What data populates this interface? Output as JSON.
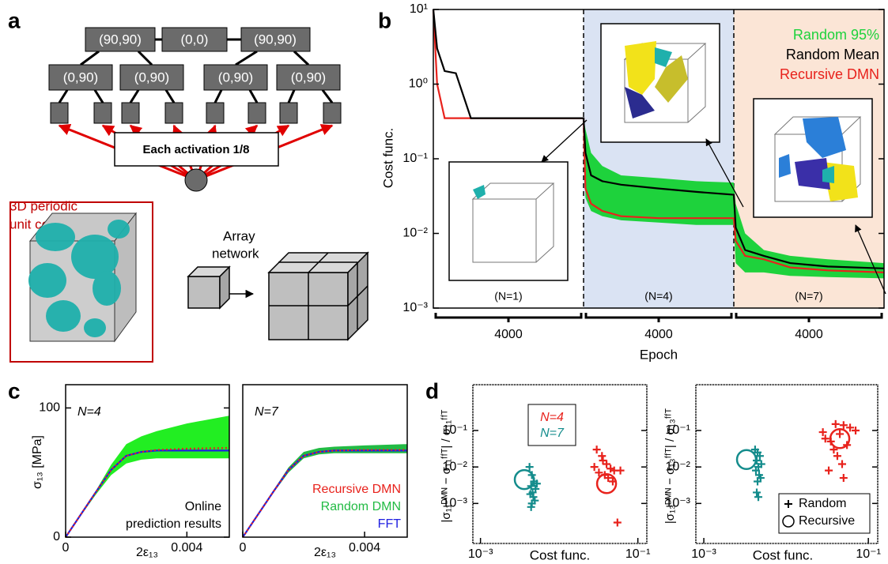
{
  "labels": [
    "a",
    "b",
    "c",
    "d"
  ],
  "diagram": {
    "level1": [
      "(90,90)",
      "(0,0)",
      "(90,90)"
    ],
    "level2": [
      "(0,90)",
      "(0,90)",
      "(0,90)",
      "(0,90)"
    ],
    "activation": "Each activation 1/8",
    "unit_cell": [
      "3D periodic",
      "unit cell"
    ],
    "array": [
      "Array",
      "network"
    ]
  },
  "chart_data": [
    {
      "type": "line",
      "ylabel": "Cost func.",
      "xlabel": "Epoch",
      "log_y": true,
      "xlim": [
        0,
        12000
      ],
      "ylim": [
        0.001,
        10
      ],
      "yticks": [
        {
          "value": 0.001,
          "label": "10⁻³"
        },
        {
          "value": 0.01,
          "label": "10⁻²"
        },
        {
          "value": 0.1,
          "label": "10⁻¹"
        },
        {
          "value": 1,
          "label": "10⁰"
        },
        {
          "value": 10,
          "label": "10¹"
        }
      ],
      "stages": [
        {
          "epochs": 4000,
          "label": "(N=1)",
          "color": "#ffffff"
        },
        {
          "epochs": 4000,
          "label": "(N=4)",
          "color": "#dae3f3"
        },
        {
          "epochs": 4000,
          "label": "(N=7)",
          "color": "#fbe5d6"
        }
      ],
      "x": [
        0,
        100,
        300,
        600,
        800,
        1000,
        2000,
        4000,
        4050,
        4200,
        4500,
        5000,
        6000,
        7000,
        8000,
        8050,
        8300,
        8800,
        9500,
        10500,
        12000
      ],
      "series": [
        {
          "name": "Random 95%",
          "color": "#1ed23c",
          "upper": [
            null,
            null,
            null,
            null,
            null,
            null,
            null,
            0.35,
            0.25,
            0.12,
            0.08,
            0.06,
            0.055,
            0.05,
            0.048,
            0.025,
            0.01,
            0.006,
            0.005,
            0.0045,
            0.004
          ],
          "lower": [
            null,
            null,
            null,
            null,
            null,
            null,
            null,
            0.35,
            0.03,
            0.02,
            0.017,
            0.015,
            0.014,
            0.013,
            0.013,
            0.004,
            0.003,
            0.003,
            0.0027,
            0.0026,
            0.0025
          ]
        },
        {
          "name": "Random Mean",
          "color": "#000000",
          "values": [
            10,
            3,
            1.5,
            1.4,
            0.7,
            0.35,
            0.35,
            0.35,
            0.12,
            0.06,
            0.05,
            0.045,
            0.04,
            0.036,
            0.033,
            0.012,
            0.006,
            0.005,
            0.004,
            0.0036,
            0.0034
          ]
        },
        {
          "name": "Recursive DMN",
          "color": "#e8221c",
          "values": [
            10,
            1,
            0.35,
            0.35,
            0.35,
            0.35,
            0.35,
            0.35,
            0.04,
            0.025,
            0.02,
            0.017,
            0.016,
            0.016,
            0.016,
            0.008,
            0.005,
            0.0045,
            0.0035,
            0.0032,
            0.003
          ]
        }
      ]
    },
    {
      "type": "line",
      "ylabel": "σ₁₃ [MPa]",
      "xlabel": "2ε₁₃",
      "annotations": [
        "N=4",
        "Online",
        "prediction results"
      ],
      "xlim": [
        0,
        0.0054
      ],
      "ylim": [
        0,
        118
      ],
      "xticks": [
        0,
        0.004
      ],
      "yticks": [
        0,
        100
      ],
      "x": [
        0,
        0.001,
        0.0015,
        0.002,
        0.0025,
        0.003,
        0.004,
        0.0054
      ],
      "series": [
        {
          "color": "#e8221c",
          "style": "dotted",
          "values": [
            0,
            35,
            52,
            63,
            66,
            67.5,
            68.5,
            69
          ]
        },
        {
          "color": "#22ee22",
          "upper": [
            0,
            36,
            56,
            72,
            78,
            82,
            88,
            94
          ],
          "lower": [
            0,
            33,
            48,
            57,
            60,
            61,
            61,
            61
          ]
        },
        {
          "color": "#2020e0",
          "values": [
            0,
            35,
            52,
            63,
            66,
            67,
            67,
            67
          ]
        }
      ]
    },
    {
      "type": "line",
      "xlabel": "2ε₁₃",
      "annotations": [
        "N=7"
      ],
      "xlim": [
        0,
        0.0054
      ],
      "ylim": [
        0,
        118
      ],
      "xticks": [
        0,
        0.004
      ],
      "x": [
        0,
        0.001,
        0.0015,
        0.002,
        0.0025,
        0.003,
        0.004,
        0.0054
      ],
      "series": [
        {
          "name": "Recursive DMN",
          "color": "#e8221c",
          "style": "dotted",
          "values": [
            0,
            35,
            52,
            63,
            66,
            67,
            67.5,
            67.5
          ]
        },
        {
          "name": "Random DMN",
          "color": "#22bb44",
          "upper": [
            0,
            36,
            54,
            66,
            69,
            70,
            71,
            72
          ],
          "lower": [
            0,
            34,
            50,
            61,
            64,
            65,
            65,
            65
          ]
        },
        {
          "name": "FFT",
          "color": "#2020e0",
          "values": [
            0,
            35,
            52,
            63,
            66,
            67,
            67,
            67
          ]
        }
      ]
    },
    {
      "type": "scatter",
      "xlabel": "Cost func.",
      "ylabel": "|σ₁₁ᴰᴹᴺ − σ₁₁ᶠᶠᵀ| / σ₁₁ᶠᶠᵀ",
      "log_x": true,
      "log_y": true,
      "xlim": [
        0.0008,
        0.13
      ],
      "ylim": [
        8e-05,
        1.8
      ],
      "xticks": [
        {
          "value": 0.001,
          "label": "10⁻³"
        },
        {
          "value": 0.1,
          "label": "10⁻¹"
        }
      ],
      "yticks": [
        {
          "value": 0.001,
          "label": "10⁻³"
        },
        {
          "value": 0.01,
          "label": "10⁻²"
        },
        {
          "value": 0.1,
          "label": "10⁻¹"
        }
      ],
      "series": [
        {
          "name": "N=4",
          "color": "#e8221c",
          "x": [
            0.03,
            0.035,
            0.04,
            0.045,
            0.05,
            0.032,
            0.038,
            0.042,
            0.028,
            0.048,
            0.055,
            0.036,
            0.06
          ],
          "y": [
            0.03,
            0.02,
            0.012,
            0.009,
            0.008,
            0.007,
            0.006,
            0.005,
            0.01,
            0.004,
            0.0003,
            0.015,
            0.008
          ],
          "recursive": {
            "x": 0.04,
            "y": 0.0035
          }
        },
        {
          "name": "N=7",
          "color": "#148c8c",
          "x": [
            0.0042,
            0.0045,
            0.0048,
            0.0044,
            0.005,
            0.0046,
            0.0043,
            0.0047,
            0.0049,
            0.0045,
            0.0052,
            0.0044
          ],
          "y": [
            0.01,
            0.006,
            0.004,
            0.003,
            0.0025,
            0.002,
            0.0018,
            0.0015,
            0.0012,
            0.001,
            0.0035,
            0.0008
          ],
          "recursive": {
            "x": 0.0036,
            "y": 0.0045
          }
        }
      ]
    },
    {
      "type": "scatter",
      "xlabel": "Cost func.",
      "ylabel": "|σ₁₃ᴰᴹᴺ − σ₁₃ᶠᶠᵀ| / σ₁₃ᶠᶠᵀ",
      "log_x": true,
      "log_y": true,
      "xlim": [
        0.0008,
        0.13
      ],
      "ylim": [
        8e-05,
        1.8
      ],
      "xticks": [
        {
          "value": 0.001,
          "label": "10⁻³"
        },
        {
          "value": 0.1,
          "label": "10⁻¹"
        }
      ],
      "yticks": [
        {
          "value": 0.001,
          "label": "10⁻³"
        },
        {
          "value": 0.01,
          "label": "10⁻²"
        },
        {
          "value": 0.1,
          "label": "10⁻¹"
        }
      ],
      "legend": [
        "Random",
        "Recursive"
      ],
      "series": [
        {
          "color": "#e8221c",
          "x": [
            0.04,
            0.05,
            0.06,
            0.07,
            0.045,
            0.03,
            0.035,
            0.055,
            0.038,
            0.042,
            0.048,
            0.033,
            0.05,
            0.028
          ],
          "y": [
            0.15,
            0.14,
            0.12,
            0.1,
            0.08,
            0.06,
            0.05,
            0.04,
            0.03,
            0.02,
            0.012,
            0.008,
            0.005,
            0.09
          ],
          "recursive": {
            "x": 0.045,
            "y": 0.06
          }
        },
        {
          "color": "#148c8c",
          "x": [
            0.0042,
            0.0045,
            0.0048,
            0.0044,
            0.005,
            0.0046,
            0.0043,
            0.0047,
            0.0049,
            0.0045,
            0.0044,
            0.0046
          ],
          "y": [
            0.03,
            0.025,
            0.02,
            0.015,
            0.012,
            0.01,
            0.008,
            0.006,
            0.005,
            0.004,
            0.002,
            0.0015
          ],
          "recursive": {
            "x": 0.0033,
            "y": 0.016
          }
        }
      ]
    }
  ]
}
